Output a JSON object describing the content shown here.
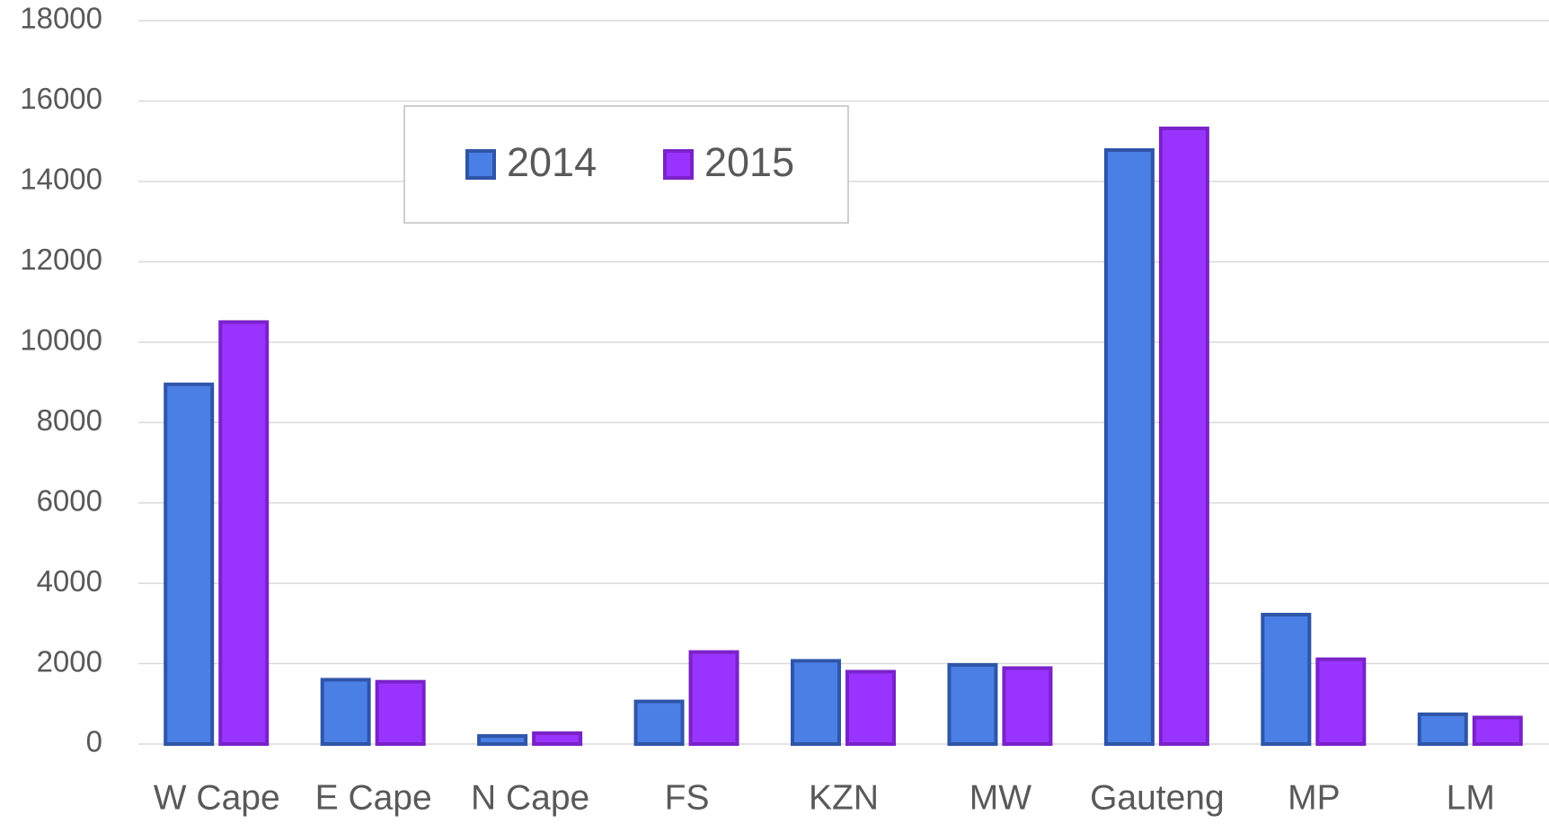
{
  "chart_data": {
    "type": "bar",
    "categories": [
      "W Cape",
      "E Cape",
      "N Cape",
      "FS",
      "KZN",
      "MW",
      "Gauteng",
      "MP",
      "LM"
    ],
    "series": [
      {
        "name": "2014",
        "color": "#4a7fe6",
        "values": [
          8950,
          1600,
          200,
          1060,
          2070,
          1970,
          14780,
          3220,
          740
        ]
      },
      {
        "name": "2015",
        "color": "#9933ff",
        "values": [
          10500,
          1550,
          270,
          2290,
          1800,
          1890,
          15320,
          2110,
          660
        ]
      }
    ],
    "ylim": [
      0,
      18000
    ],
    "yticks": [
      0,
      2000,
      4000,
      6000,
      8000,
      10000,
      12000,
      14000,
      16000,
      18000
    ],
    "grid": true,
    "legend": "top"
  }
}
